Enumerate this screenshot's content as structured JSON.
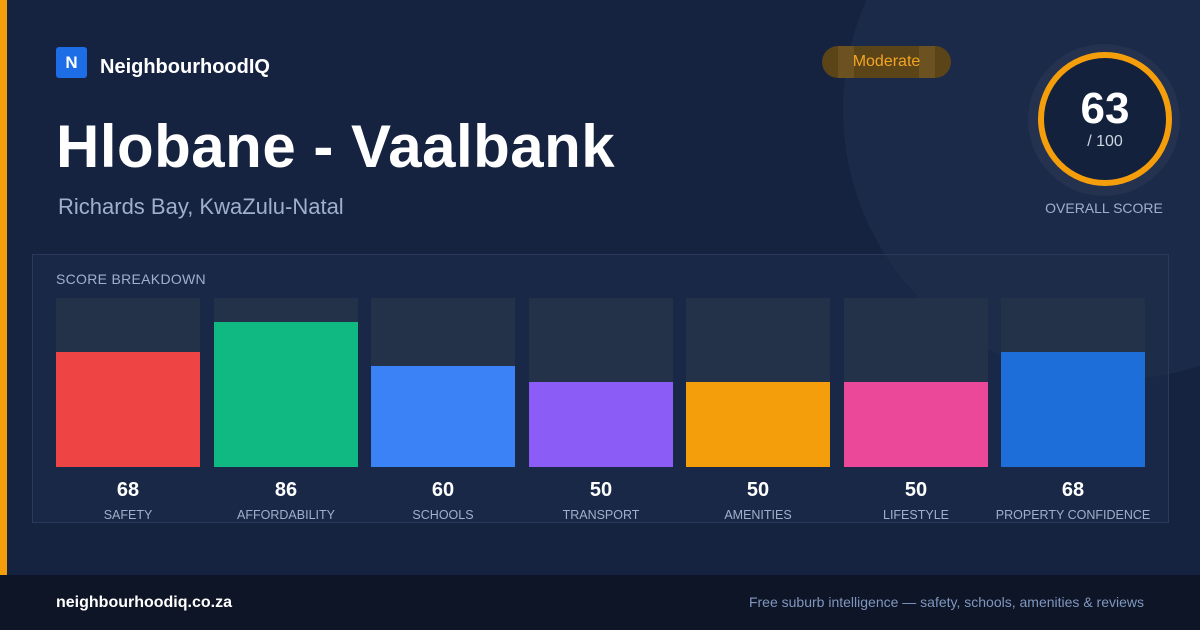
{
  "brand": {
    "logo_letter": "N",
    "name": "NeighbourhoodIQ"
  },
  "badge": {
    "label": "Moderate"
  },
  "suburb": {
    "title": "Hlobane - Vaalbank",
    "location": "Richards Bay, KwaZulu-Natal"
  },
  "overall": {
    "value": "63",
    "max": "/ 100",
    "caption": "OVERALL SCORE",
    "ring_color": "#f59e0b"
  },
  "breakdown": {
    "title": "SCORE BREAKDOWN"
  },
  "chart_data": {
    "type": "bar",
    "categories": [
      "SAFETY",
      "AFFORDABILITY",
      "SCHOOLS",
      "TRANSPORT",
      "AMENITIES",
      "LIFESTYLE",
      "PROPERTY CONFIDENCE"
    ],
    "values": [
      68,
      86,
      60,
      50,
      50,
      50,
      68
    ],
    "colors": [
      "#ef4444",
      "#10b981",
      "#3b82f6",
      "#8b5cf6",
      "#f59e0b",
      "#ec4899",
      "#1d6ed8"
    ],
    "ylim": [
      0,
      100
    ]
  },
  "footer": {
    "domain": "neighbourhoodiq.co.za",
    "tagline": "Free suburb intelligence — safety, schools, amenities & reviews"
  },
  "colors": {
    "accent": "#f59e0b",
    "brand": "#1d6ee6",
    "background": "#152340"
  }
}
